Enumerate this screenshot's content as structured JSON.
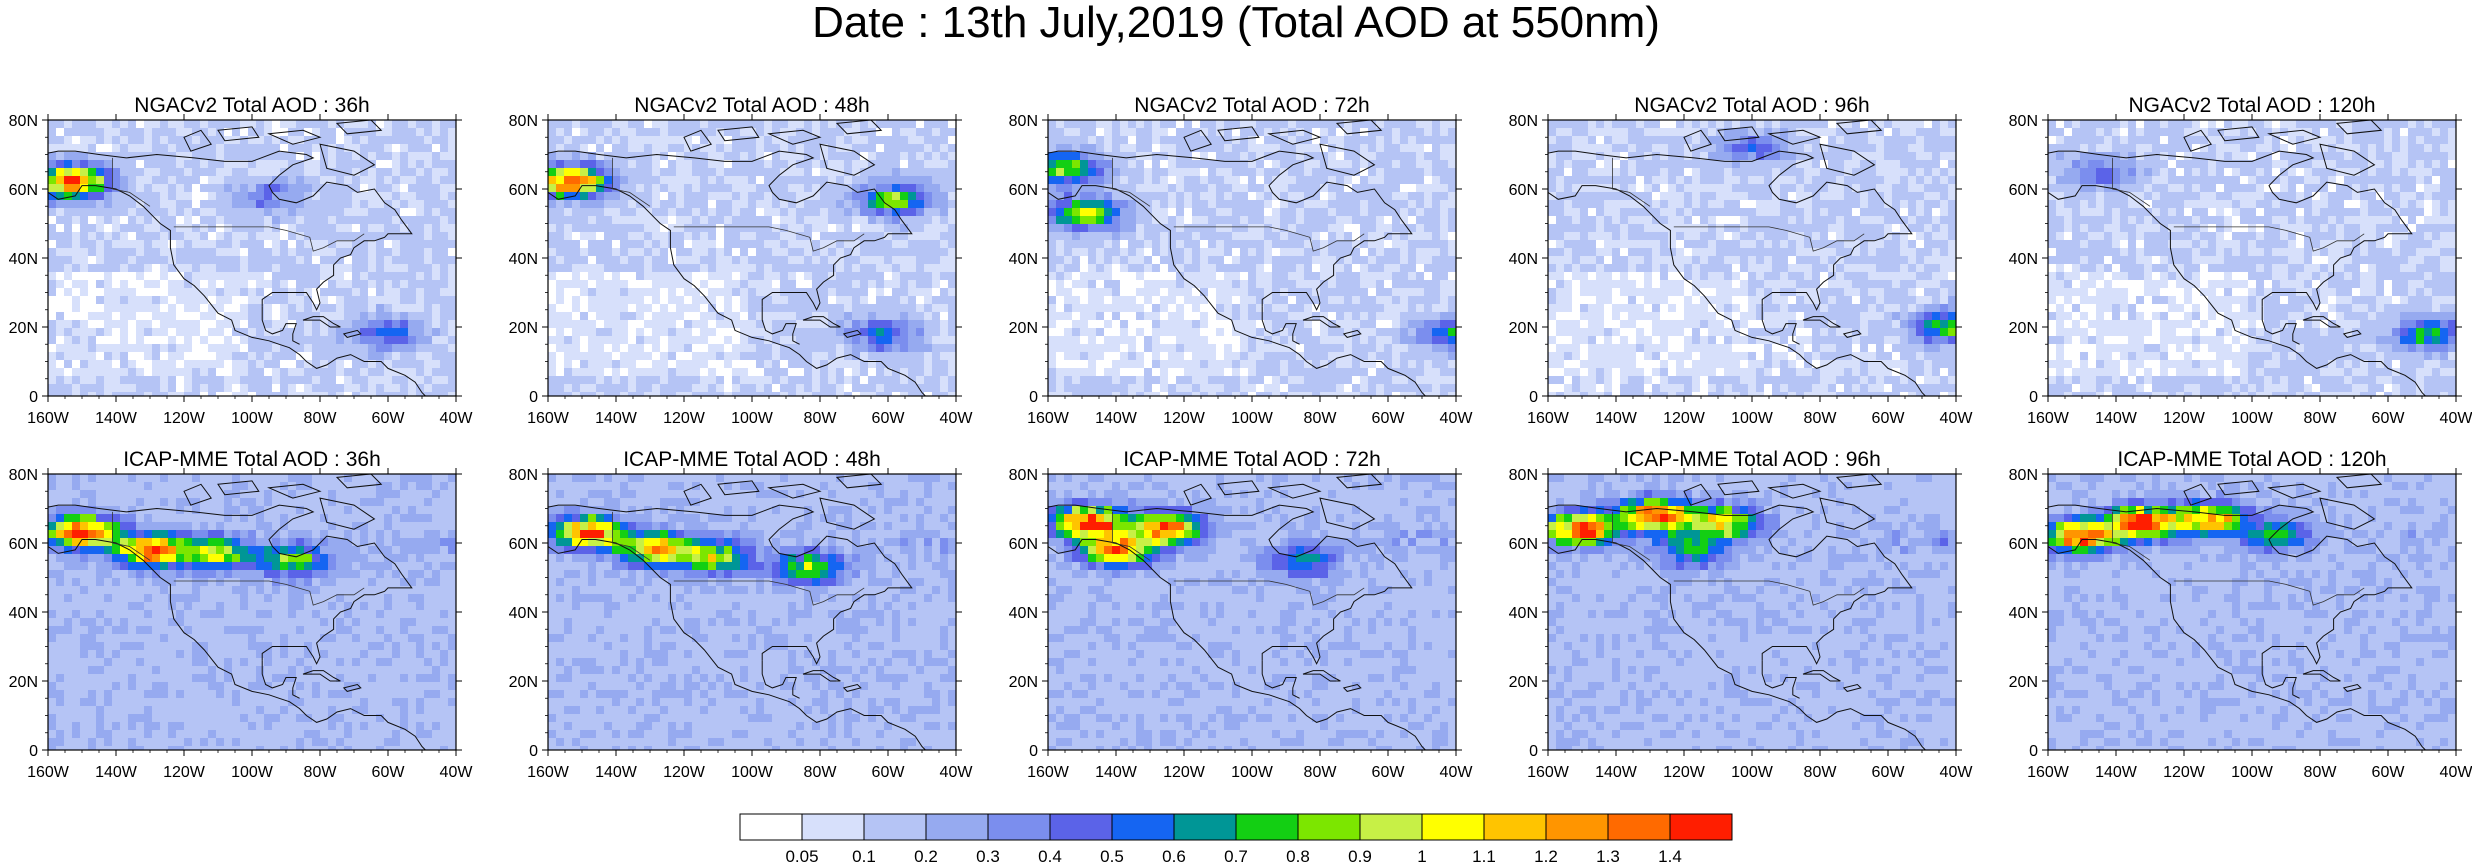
{
  "title": "Date : 13th July,2019 (Total AOD at 550nm)",
  "x_ticks": [
    "160W",
    "140W",
    "120W",
    "100W",
    "80W",
    "60W",
    "40W"
  ],
  "y_ticks": [
    "0",
    "20N",
    "40N",
    "60N",
    "80N"
  ],
  "x_range": [
    -160,
    -40
  ],
  "y_range": [
    0,
    80
  ],
  "panels": [
    {
      "title": "NGACv2 Total AOD : 36h",
      "model": "NGACv2",
      "lead": "36h",
      "hotspots": [
        {
          "lon": -153,
          "lat": 62,
          "level": 1.4
        },
        {
          "lon": -60,
          "lat": 18,
          "level": 0.45
        },
        {
          "lon": -95,
          "lat": 58,
          "level": 0.3
        }
      ]
    },
    {
      "title": "NGACv2 Total AOD : 48h",
      "model": "NGACv2",
      "lead": "48h",
      "hotspots": [
        {
          "lon": -153,
          "lat": 62,
          "level": 1.3
        },
        {
          "lon": -58,
          "lat": 57,
          "level": 0.75
        },
        {
          "lon": -62,
          "lat": 18,
          "level": 0.45
        }
      ]
    },
    {
      "title": "NGACv2 Total AOD : 72h",
      "model": "NGACv2",
      "lead": "72h",
      "hotspots": [
        {
          "lon": -155,
          "lat": 66,
          "level": 0.85
        },
        {
          "lon": -149,
          "lat": 53,
          "level": 0.9
        },
        {
          "lon": -40,
          "lat": 18,
          "level": 0.6
        }
      ]
    },
    {
      "title": "NGACv2 Total AOD : 96h",
      "model": "NGACv2",
      "lead": "96h",
      "hotspots": [
        {
          "lon": -42,
          "lat": 20,
          "level": 0.75
        },
        {
          "lon": -100,
          "lat": 72,
          "level": 0.4
        }
      ]
    },
    {
      "title": "NGACv2 Total AOD : 120h",
      "model": "NGACv2",
      "lead": "120h",
      "hotspots": [
        {
          "lon": -48,
          "lat": 18,
          "level": 0.65
        },
        {
          "lon": -145,
          "lat": 65,
          "level": 0.35
        }
      ]
    },
    {
      "title": "ICAP-MME Total AOD : 36h",
      "model": "ICAP-MME",
      "lead": "36h",
      "hotspots": [
        {
          "lon": -150,
          "lat": 63,
          "level": 1.4
        },
        {
          "lon": -130,
          "lat": 58,
          "level": 1.3
        },
        {
          "lon": -110,
          "lat": 57,
          "level": 0.9
        },
        {
          "lon": -88,
          "lat": 55,
          "level": 0.75
        }
      ]
    },
    {
      "title": "ICAP-MME Total AOD : 48h",
      "model": "ICAP-MME",
      "lead": "48h",
      "hotspots": [
        {
          "lon": -148,
          "lat": 63,
          "level": 1.3
        },
        {
          "lon": -128,
          "lat": 58,
          "level": 1.2
        },
        {
          "lon": -110,
          "lat": 56,
          "level": 0.8
        },
        {
          "lon": -83,
          "lat": 53,
          "level": 0.75
        }
      ]
    },
    {
      "title": "ICAP-MME Total AOD : 72h",
      "model": "ICAP-MME",
      "lead": "72h",
      "hotspots": [
        {
          "lon": -148,
          "lat": 66,
          "level": 1.4
        },
        {
          "lon": -125,
          "lat": 64,
          "level": 1.3
        },
        {
          "lon": -140,
          "lat": 58,
          "level": 1.1
        },
        {
          "lon": -85,
          "lat": 55,
          "level": 0.5
        }
      ]
    },
    {
      "title": "ICAP-MME Total AOD : 96h",
      "model": "ICAP-MME",
      "lead": "96h",
      "hotspots": [
        {
          "lon": -150,
          "lat": 64,
          "level": 1.4
        },
        {
          "lon": -128,
          "lat": 68,
          "level": 1.4
        },
        {
          "lon": -108,
          "lat": 66,
          "level": 1.0
        },
        {
          "lon": -118,
          "lat": 58,
          "level": 0.6
        }
      ]
    },
    {
      "title": "ICAP-MME Total AOD : 120h",
      "model": "ICAP-MME",
      "lead": "120h",
      "hotspots": [
        {
          "lon": -150,
          "lat": 62,
          "level": 1.4
        },
        {
          "lon": -132,
          "lat": 66,
          "level": 1.4
        },
        {
          "lon": -112,
          "lat": 67,
          "level": 1.1
        },
        {
          "lon": -92,
          "lat": 62,
          "level": 0.6
        }
      ]
    }
  ],
  "colorbar": {
    "labels": [
      "0.05",
      "0.1",
      "0.2",
      "0.3",
      "0.4",
      "0.5",
      "0.6",
      "0.7",
      "0.8",
      "0.9",
      "1",
      "1.1",
      "1.2",
      "1.3",
      "1.4"
    ],
    "colors": [
      "#ffffff",
      "#d7e0fb",
      "#b5c4f5",
      "#96aaf0",
      "#7b8eee",
      "#5b63e8",
      "#1565f2",
      "#009696",
      "#13cf13",
      "#7ce600",
      "#c7f046",
      "#ffff00",
      "#ffc400",
      "#ff9500",
      "#ff6a00",
      "#ff1e00"
    ]
  }
}
